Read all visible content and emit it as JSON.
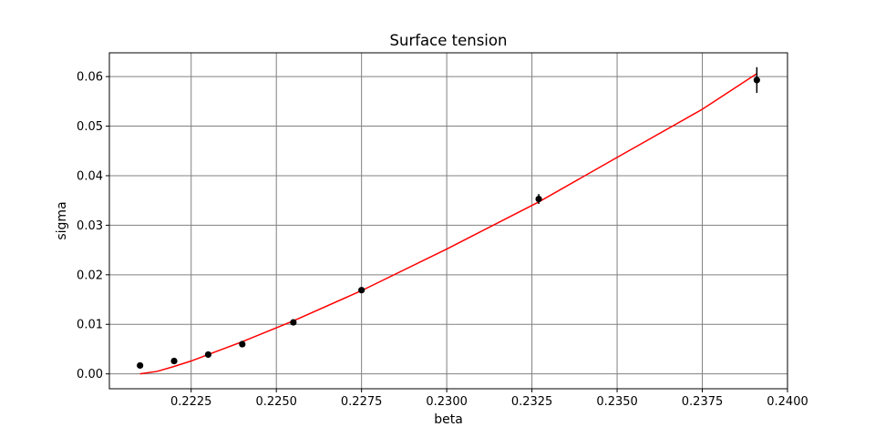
{
  "chart_data": {
    "type": "scatter",
    "title": "Surface tension",
    "xlabel": "beta",
    "ylabel": "sigma",
    "xlim": [
      0.2201,
      0.24
    ],
    "ylim": [
      -0.003,
      0.0648
    ],
    "xticks": [
      0.2225,
      0.225,
      0.2275,
      0.23,
      0.2325,
      0.235,
      0.2375,
      0.24
    ],
    "xtick_labels": [
      "0.2225",
      "0.2250",
      "0.2275",
      "0.2300",
      "0.2325",
      "0.2350",
      "0.2375",
      "0.2400"
    ],
    "yticks": [
      0.0,
      0.01,
      0.02,
      0.03,
      0.04,
      0.05,
      0.06
    ],
    "ytick_labels": [
      "0.00",
      "0.01",
      "0.02",
      "0.03",
      "0.04",
      "0.05",
      "0.06"
    ],
    "grid": true,
    "series": [
      {
        "kind": "errorbar",
        "color": "#000000",
        "points": [
          {
            "x": 0.221,
            "y": 0.0017,
            "err": 0.0002
          },
          {
            "x": 0.222,
            "y": 0.0026,
            "err": 0.0002
          },
          {
            "x": 0.223,
            "y": 0.0039,
            "err": 0.0002
          },
          {
            "x": 0.224,
            "y": 0.006,
            "err": 0.0003
          },
          {
            "x": 0.2255,
            "y": 0.0104,
            "err": 0.0003
          },
          {
            "x": 0.2275,
            "y": 0.0169,
            "err": 0.0003
          },
          {
            "x": 0.2327,
            "y": 0.0353,
            "err": 0.001
          },
          {
            "x": 0.2391,
            "y": 0.0593,
            "err": 0.0026
          }
        ]
      },
      {
        "kind": "line",
        "color": "#ff0000",
        "x": [
          0.221,
          0.2215,
          0.222,
          0.2225,
          0.223,
          0.224,
          0.2255,
          0.2275,
          0.23,
          0.2327,
          0.235,
          0.2375,
          0.2391
        ],
        "y": [
          0.0,
          0.0005,
          0.0015,
          0.0026,
          0.0039,
          0.0065,
          0.0107,
          0.0168,
          0.0252,
          0.0347,
          0.0437,
          0.0534,
          0.0606
        ]
      }
    ]
  }
}
